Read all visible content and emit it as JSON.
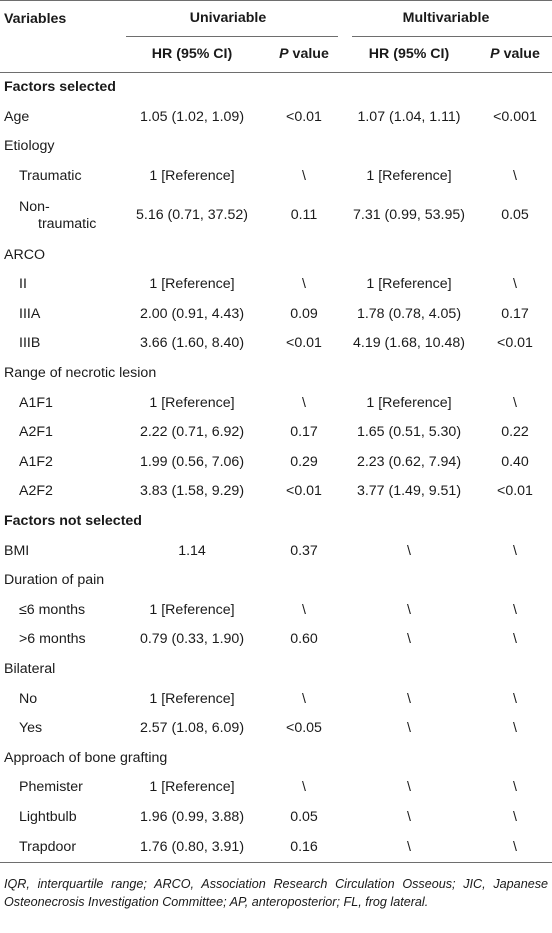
{
  "header": {
    "variables": "Variables",
    "univariable": "Univariable",
    "multivariable": "Multivariable",
    "hr_label": "HR (95% CI)",
    "p_italic": "P",
    "p_rest": " value"
  },
  "sections": {
    "selected": "Factors selected",
    "not_selected": "Factors not selected"
  },
  "rows": [
    {
      "label": "Age",
      "u_hr": "1.05 (1.02, 1.09)",
      "u_p": "<0.01",
      "m_hr": "1.07 (1.04, 1.11)",
      "m_p": "<0.001"
    },
    {
      "label": "Etiology"
    },
    {
      "label": "Traumatic",
      "u_hr": "1 [Reference]",
      "u_p": "\\",
      "m_hr": "1 [Reference]",
      "m_p": "\\"
    },
    {
      "label": "Non-",
      "label2": "traumatic",
      "u_hr": "5.16 (0.71, 37.52)",
      "u_p": "0.11",
      "m_hr": "7.31 (0.99, 53.95)",
      "m_p": "0.05"
    },
    {
      "label": "ARCO"
    },
    {
      "label": "II",
      "u_hr": "1 [Reference]",
      "u_p": "\\",
      "m_hr": "1 [Reference]",
      "m_p": "\\"
    },
    {
      "label": "IIIA",
      "u_hr": "2.00 (0.91, 4.43)",
      "u_p": "0.09",
      "m_hr": "1.78 (0.78, 4.05)",
      "m_p": "0.17"
    },
    {
      "label": "IIIB",
      "u_hr": "3.66 (1.60, 8.40)",
      "u_p": "<0.01",
      "m_hr": "4.19 (1.68, 10.48)",
      "m_p": "<0.01"
    },
    {
      "label": "Range of necrotic lesion"
    },
    {
      "label": "A1F1",
      "u_hr": "1 [Reference]",
      "u_p": "\\",
      "m_hr": "1 [Reference]",
      "m_p": "\\"
    },
    {
      "label": "A2F1",
      "u_hr": "2.22 (0.71, 6.92)",
      "u_p": "0.17",
      "m_hr": "1.65 (0.51, 5.30)",
      "m_p": "0.22"
    },
    {
      "label": "A1F2",
      "u_hr": "1.99 (0.56, 7.06)",
      "u_p": "0.29",
      "m_hr": "2.23 (0.62, 7.94)",
      "m_p": "0.40"
    },
    {
      "label": "A2F2",
      "u_hr": "3.83 (1.58, 9.29)",
      "u_p": "<0.01",
      "m_hr": "3.77 (1.49, 9.51)",
      "m_p": "<0.01"
    },
    {
      "label": "BMI",
      "u_hr": "1.14",
      "u_p": "0.37",
      "m_hr": "\\",
      "m_p": "\\"
    },
    {
      "label": "Duration of pain"
    },
    {
      "label": "≤6 months",
      "u_hr": "1 [Reference]",
      "u_p": "\\",
      "m_hr": "\\",
      "m_p": "\\"
    },
    {
      "label": ">6 months",
      "u_hr": "0.79 (0.33, 1.90)",
      "u_p": "0.60",
      "m_hr": "\\",
      "m_p": "\\"
    },
    {
      "label": "Bilateral"
    },
    {
      "label": "No",
      "u_hr": "1 [Reference]",
      "u_p": "\\",
      "m_hr": "\\",
      "m_p": "\\"
    },
    {
      "label": "Yes",
      "u_hr": "2.57 (1.08, 6.09)",
      "u_p": "<0.05",
      "m_hr": "\\",
      "m_p": "\\"
    },
    {
      "label": "Approach of bone grafting"
    },
    {
      "label": "Phemister",
      "u_hr": "1 [Reference]",
      "u_p": "\\",
      "m_hr": "\\",
      "m_p": "\\"
    },
    {
      "label": "Lightbulb",
      "u_hr": "1.96 (0.99, 3.88)",
      "u_p": "0.05",
      "m_hr": "\\",
      "m_p": "\\"
    },
    {
      "label": "Trapdoor",
      "u_hr": "1.76 (0.80, 3.91)",
      "u_p": "0.16",
      "m_hr": "\\",
      "m_p": "\\"
    }
  ],
  "footnote": "IQR, interquartile range; ARCO, Association Research Circulation Osseous; JIC, Japanese Osteonecrosis Investigation Committee; AP, anteroposterior; FL, frog lateral."
}
